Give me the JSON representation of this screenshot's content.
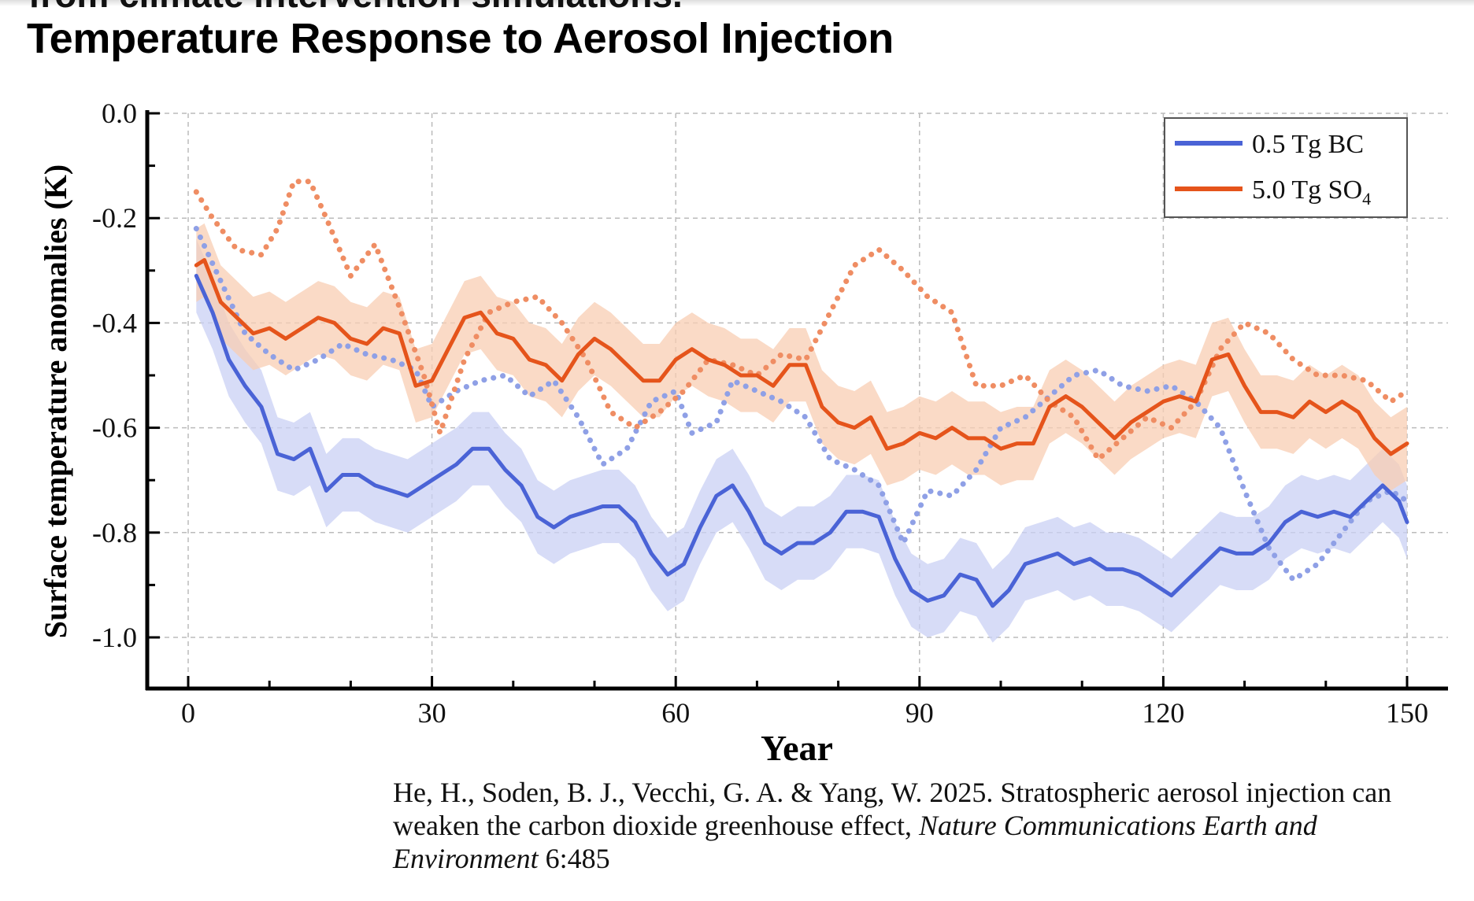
{
  "header": {
    "clipped_subtitle": "from climate intervention simulations.",
    "title": "Temperature Response to Aerosol Injection"
  },
  "citation": {
    "text": "He, H., Soden, B. J., Vecchi, G. A. & Yang, W. 2025. Stratospheric aerosol injection can weaken the carbon dioxide greenhouse effect, ",
    "journal": "Nature Communications Earth and Environment",
    "volume": " 6:485"
  },
  "chart_data": {
    "type": "line",
    "title": "",
    "xlabel": "Year",
    "ylabel": "Surface temperature anomalies (K)",
    "xlim": [
      0,
      150
    ],
    "ylim": [
      -1.1,
      0.0
    ],
    "xticks": [
      "0",
      "30",
      "60",
      "90",
      "120",
      "150"
    ],
    "yticks": [
      "0.0",
      "-0.2",
      "-0.4",
      "-0.6",
      "-0.8",
      "-1.0"
    ],
    "grid": true,
    "legend_position": "top-right",
    "colors": {
      "bc": "#4a63d6",
      "so4": "#e5541b",
      "bc_band": "#c9d0f4",
      "so4_band": "#f8cdb3"
    },
    "series": [
      {
        "name": "0.5 Tg BC",
        "style": "solid",
        "color": "#4a63d6",
        "band_halfwidth": 0.07,
        "x": [
          1,
          3,
          5,
          7,
          9,
          11,
          13,
          15,
          17,
          19,
          21,
          23,
          25,
          27,
          29,
          31,
          33,
          35,
          37,
          39,
          41,
          43,
          45,
          47,
          49,
          51,
          53,
          55,
          57,
          59,
          61,
          63,
          65,
          67,
          69,
          71,
          73,
          75,
          77,
          79,
          81,
          83,
          85,
          87,
          89,
          91,
          93,
          95,
          97,
          99,
          101,
          103,
          105,
          107,
          109,
          111,
          113,
          115,
          117,
          119,
          121,
          123,
          125,
          127,
          129,
          131,
          133,
          135,
          137,
          139,
          141,
          143,
          145,
          147,
          149,
          150
        ],
        "y": [
          -0.31,
          -0.38,
          -0.47,
          -0.52,
          -0.56,
          -0.65,
          -0.66,
          -0.64,
          -0.72,
          -0.69,
          -0.69,
          -0.71,
          -0.72,
          -0.73,
          -0.71,
          -0.69,
          -0.67,
          -0.64,
          -0.64,
          -0.68,
          -0.71,
          -0.77,
          -0.79,
          -0.77,
          -0.76,
          -0.75,
          -0.75,
          -0.78,
          -0.84,
          -0.88,
          -0.86,
          -0.79,
          -0.73,
          -0.71,
          -0.76,
          -0.82,
          -0.84,
          -0.82,
          -0.82,
          -0.8,
          -0.76,
          -0.76,
          -0.77,
          -0.85,
          -0.91,
          -0.93,
          -0.92,
          -0.88,
          -0.89,
          -0.94,
          -0.91,
          -0.86,
          -0.85,
          -0.84,
          -0.86,
          -0.85,
          -0.87,
          -0.87,
          -0.88,
          -0.9,
          -0.92,
          -0.89,
          -0.86,
          -0.83,
          -0.84,
          -0.84,
          -0.82,
          -0.78,
          -0.76,
          -0.77,
          -0.76,
          -0.77,
          -0.74,
          -0.71,
          -0.74,
          -0.78
        ]
      },
      {
        "name": "5.0 Tg SO4",
        "style": "solid",
        "color": "#e5541b",
        "band_halfwidth": 0.07,
        "x": [
          1,
          2,
          4,
          6,
          8,
          10,
          12,
          14,
          16,
          18,
          20,
          22,
          24,
          26,
          28,
          30,
          32,
          34,
          36,
          38,
          40,
          42,
          44,
          46,
          48,
          50,
          52,
          54,
          56,
          58,
          60,
          62,
          64,
          66,
          68,
          70,
          72,
          74,
          76,
          78,
          80,
          82,
          84,
          86,
          88,
          90,
          92,
          94,
          96,
          98,
          100,
          102,
          104,
          106,
          108,
          110,
          112,
          114,
          116,
          118,
          120,
          122,
          124,
          126,
          128,
          130,
          132,
          134,
          136,
          138,
          140,
          142,
          144,
          146,
          148,
          150
        ],
        "y": [
          -0.29,
          -0.28,
          -0.36,
          -0.39,
          -0.42,
          -0.41,
          -0.43,
          -0.41,
          -0.39,
          -0.4,
          -0.43,
          -0.44,
          -0.41,
          -0.42,
          -0.52,
          -0.51,
          -0.45,
          -0.39,
          -0.38,
          -0.42,
          -0.43,
          -0.47,
          -0.48,
          -0.51,
          -0.46,
          -0.43,
          -0.45,
          -0.48,
          -0.51,
          -0.51,
          -0.47,
          -0.45,
          -0.47,
          -0.48,
          -0.5,
          -0.5,
          -0.52,
          -0.48,
          -0.48,
          -0.56,
          -0.59,
          -0.6,
          -0.58,
          -0.64,
          -0.63,
          -0.61,
          -0.62,
          -0.6,
          -0.62,
          -0.62,
          -0.64,
          -0.63,
          -0.63,
          -0.56,
          -0.54,
          -0.56,
          -0.59,
          -0.62,
          -0.59,
          -0.57,
          -0.55,
          -0.54,
          -0.55,
          -0.47,
          -0.46,
          -0.52,
          -0.57,
          -0.57,
          -0.58,
          -0.55,
          -0.57,
          -0.55,
          -0.57,
          -0.62,
          -0.65,
          -0.63
        ]
      },
      {
        "name": "BC (dotted)",
        "style": "dotted",
        "color": "#8fa0e6",
        "legend": false,
        "x": [
          1,
          4,
          7,
          10,
          13,
          16,
          19,
          22,
          25,
          28,
          30,
          33,
          36,
          39,
          42,
          45,
          48,
          51,
          54,
          57,
          60,
          62,
          65,
          67,
          70,
          73,
          76,
          79,
          82,
          85,
          88,
          91,
          94,
          97,
          100,
          103,
          106,
          109,
          112,
          115,
          118,
          121,
          124,
          127,
          130,
          133,
          136,
          139,
          142,
          145,
          148,
          150
        ],
        "y": [
          -0.22,
          -0.32,
          -0.42,
          -0.46,
          -0.49,
          -0.47,
          -0.44,
          -0.46,
          -0.47,
          -0.49,
          -0.56,
          -0.53,
          -0.51,
          -0.5,
          -0.54,
          -0.51,
          -0.58,
          -0.67,
          -0.64,
          -0.55,
          -0.53,
          -0.61,
          -0.59,
          -0.51,
          -0.53,
          -0.55,
          -0.58,
          -0.66,
          -0.68,
          -0.71,
          -0.82,
          -0.72,
          -0.73,
          -0.68,
          -0.6,
          -0.58,
          -0.54,
          -0.5,
          -0.49,
          -0.52,
          -0.53,
          -0.52,
          -0.55,
          -0.6,
          -0.72,
          -0.83,
          -0.89,
          -0.86,
          -0.8,
          -0.74,
          -0.72,
          -0.74
        ]
      },
      {
        "name": "SO4 (dotted)",
        "style": "dotted",
        "color": "#ef8d63",
        "legend": false,
        "x": [
          1,
          3,
          6,
          9,
          11,
          13,
          15,
          17,
          20,
          23,
          26,
          29,
          31,
          34,
          37,
          40,
          43,
          46,
          49,
          52,
          55,
          58,
          61,
          64,
          67,
          70,
          73,
          76,
          79,
          82,
          85,
          88,
          91,
          94,
          97,
          100,
          103,
          106,
          109,
          112,
          115,
          118,
          121,
          124,
          127,
          130,
          133,
          136,
          139,
          142,
          145,
          148,
          150
        ],
        "y": [
          -0.15,
          -0.2,
          -0.26,
          -0.27,
          -0.22,
          -0.13,
          -0.13,
          -0.2,
          -0.31,
          -0.25,
          -0.37,
          -0.5,
          -0.61,
          -0.47,
          -0.38,
          -0.36,
          -0.35,
          -0.4,
          -0.47,
          -0.57,
          -0.6,
          -0.57,
          -0.53,
          -0.47,
          -0.48,
          -0.5,
          -0.46,
          -0.47,
          -0.38,
          -0.29,
          -0.26,
          -0.3,
          -0.35,
          -0.38,
          -0.52,
          -0.52,
          -0.5,
          -0.55,
          -0.58,
          -0.66,
          -0.62,
          -0.58,
          -0.6,
          -0.55,
          -0.45,
          -0.4,
          -0.42,
          -0.47,
          -0.5,
          -0.5,
          -0.51,
          -0.55,
          -0.53
        ]
      }
    ],
    "legend": [
      {
        "label": "0.5 Tg BC",
        "color": "#4a63d6"
      },
      {
        "label": "5.0 Tg SO",
        "sub": "4",
        "color": "#e5541b"
      }
    ]
  }
}
